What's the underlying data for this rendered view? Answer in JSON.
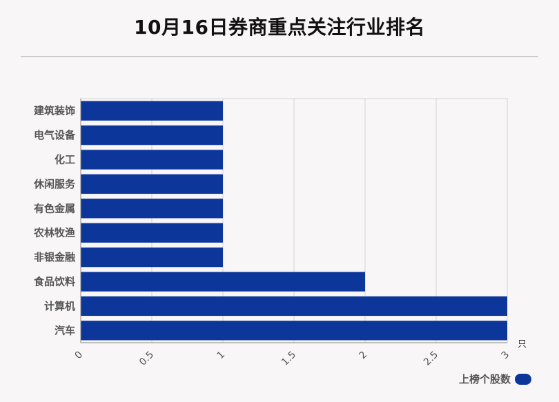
{
  "chart_data": {
    "type": "bar",
    "orientation": "horizontal",
    "title": "10月16日券商重点关注行业排名",
    "categories": [
      "建筑装饰",
      "电气设备",
      "化工",
      "休闲服务",
      "有色金属",
      "农林牧渔",
      "非银金融",
      "食品饮料",
      "计算机",
      "汽车"
    ],
    "series": [
      {
        "name": "上榜个股数",
        "values": [
          1,
          1,
          1,
          1,
          1,
          1,
          1,
          2,
          3,
          3
        ],
        "color": "#0d369a"
      }
    ],
    "xlim": [
      0,
      3
    ],
    "xticks": [
      "0",
      "0.5",
      "1",
      "1.5",
      "2",
      "2.5",
      "3"
    ],
    "xunit": "只",
    "grid": true,
    "legend_position": "bottom-right"
  }
}
